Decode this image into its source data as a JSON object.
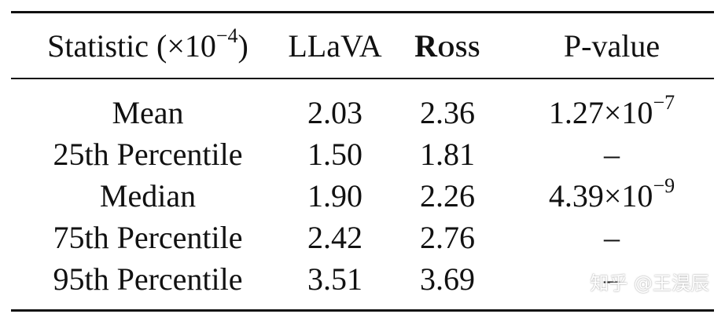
{
  "table": {
    "headers": {
      "statistic_label": "Statistic (×10",
      "statistic_exponent": "−4",
      "statistic_suffix": ")",
      "col_llava": "LLaVA",
      "col_ross": "Ross",
      "col_pvalue": "P-value"
    },
    "rows": [
      {
        "label": "Mean",
        "llava": "2.03",
        "ross": "2.36",
        "p_mantissa": "1.27×10",
        "p_exponent": "−7"
      },
      {
        "label": "25th Percentile",
        "llava": "1.50",
        "ross": "1.81",
        "p_mantissa": "–",
        "p_exponent": ""
      },
      {
        "label": "Median",
        "llava": "1.90",
        "ross": "2.26",
        "p_mantissa": "4.39×10",
        "p_exponent": "−9"
      },
      {
        "label": "75th Percentile",
        "llava": "2.42",
        "ross": "2.76",
        "p_mantissa": "–",
        "p_exponent": ""
      },
      {
        "label": "95th Percentile",
        "llava": "3.51",
        "ross": "3.69",
        "p_mantissa": "–",
        "p_exponent": ""
      }
    ]
  },
  "watermark": {
    "text": "知乎 @王淏辰"
  }
}
